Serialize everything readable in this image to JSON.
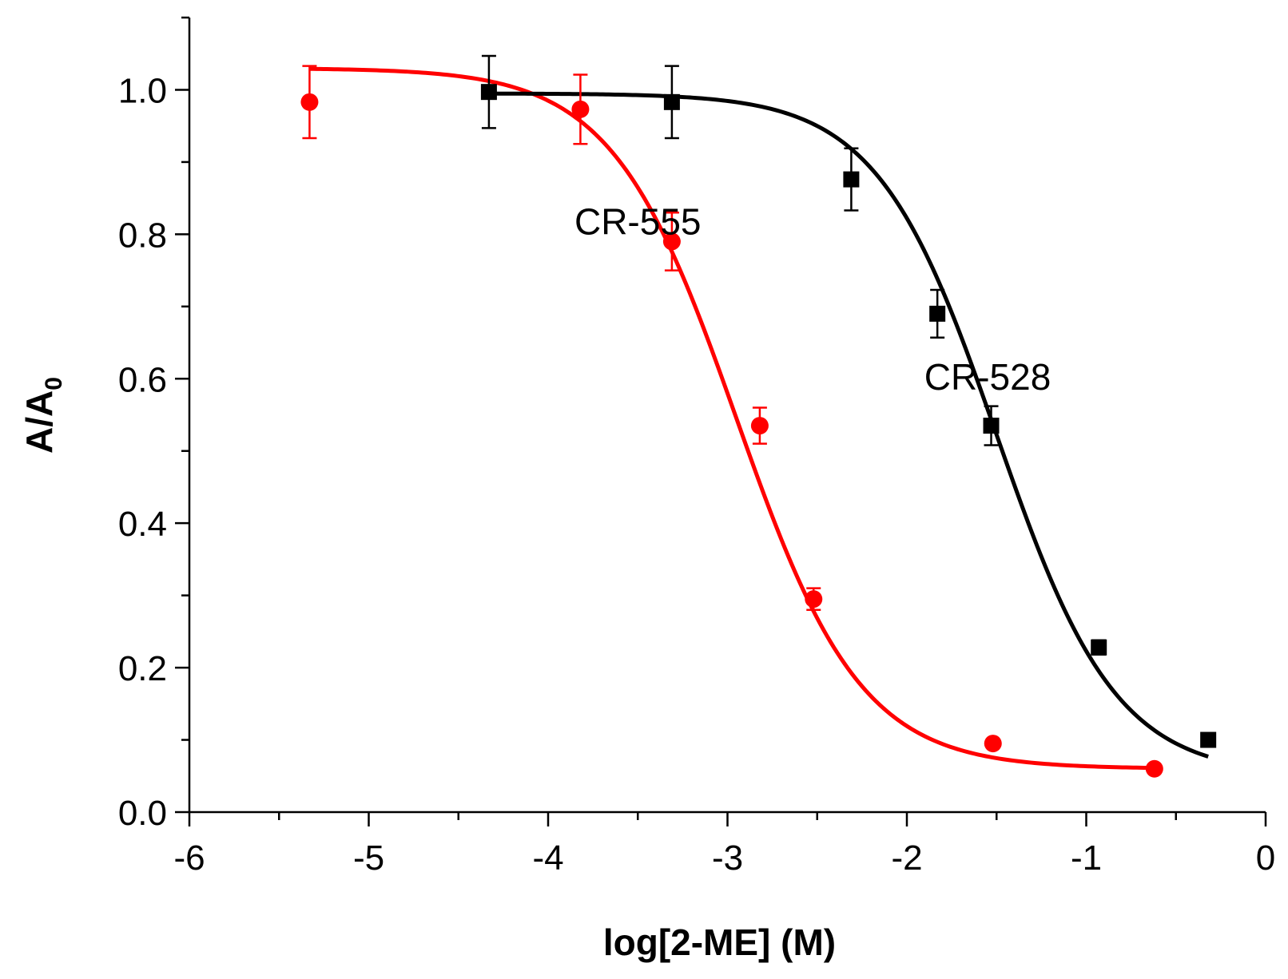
{
  "chart_data": {
    "type": "scatter",
    "xlabel": "log[2-ME] (M)",
    "ylabel_main": "A/A",
    "ylabel_sub": "0",
    "xlim": [
      -6,
      0
    ],
    "ylim": [
      0,
      1.1
    ],
    "xticks": [
      -6,
      -5,
      -4,
      -3,
      -2,
      -1,
      0
    ],
    "xtick_labels": [
      "-6",
      "-5",
      "-4",
      "-3",
      "-2",
      "-1",
      "0"
    ],
    "yticks": [
      0.0,
      0.2,
      0.4,
      0.6,
      0.8,
      1.0
    ],
    "ytick_labels": [
      "0.0",
      "0.2",
      "0.4",
      "0.6",
      "0.8",
      "1.0"
    ],
    "series": [
      {
        "name": "CR-555",
        "color": "#ff0000",
        "marker": "circle",
        "label_x": -3.5,
        "label_y": 0.8,
        "points": [
          {
            "x": -5.33,
            "y": 0.983,
            "err": 0.05
          },
          {
            "x": -3.82,
            "y": 0.973,
            "err": 0.048
          },
          {
            "x": -3.31,
            "y": 0.79,
            "err": 0.04
          },
          {
            "x": -2.82,
            "y": 0.535,
            "err": 0.025
          },
          {
            "x": -2.52,
            "y": 0.295,
            "err": 0.015
          },
          {
            "x": -1.52,
            "y": 0.095,
            "err": 0.005
          },
          {
            "x": -0.62,
            "y": 0.06,
            "err": 0.004
          }
        ],
        "fit": {
          "top": 1.03,
          "bottom": 0.06,
          "logx0": -2.95,
          "p": 1.25,
          "x_start": -5.33,
          "x_end": -0.62
        }
      },
      {
        "name": "CR-528",
        "color": "#000000",
        "marker": "square",
        "label_x": -1.55,
        "label_y": 0.585,
        "points": [
          {
            "x": -4.33,
            "y": 0.997,
            "err": 0.05
          },
          {
            "x": -3.31,
            "y": 0.983,
            "err": 0.05
          },
          {
            "x": -2.31,
            "y": 0.876,
            "err": 0.043
          },
          {
            "x": -1.83,
            "y": 0.69,
            "err": 0.033
          },
          {
            "x": -1.53,
            "y": 0.535,
            "err": 0.027
          },
          {
            "x": -0.93,
            "y": 0.228,
            "err": 0.01
          },
          {
            "x": -0.32,
            "y": 0.1,
            "err": 0.005
          }
        ],
        "fit": {
          "top": 0.995,
          "bottom": 0.05,
          "logx0": -1.5,
          "p": 1.3,
          "x_start": -4.33,
          "x_end": -0.32
        }
      }
    ]
  }
}
